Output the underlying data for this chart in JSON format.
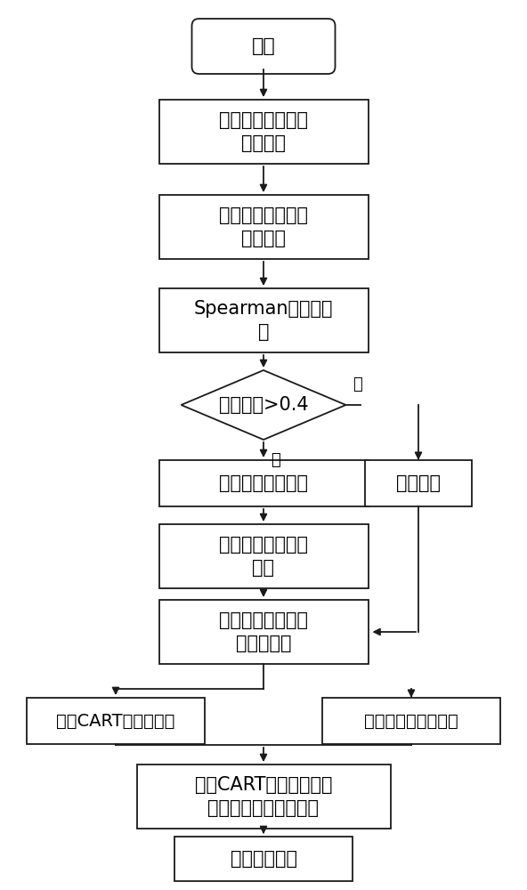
{
  "bg_color": "#ffffff",
  "nodes": {
    "start": {
      "text": "开始"
    },
    "box1": {
      "text": "构建人体面部皮肤\n指标体系"
    },
    "box2": {
      "text": "四部位层次分析法\n加权综合"
    },
    "box3": {
      "text": "Spearman秩相关分\n析"
    },
    "diamond": {
      "text": "相关系数>0.4"
    },
    "box4": {
      "text": "强相关性指标集合"
    },
    "box5": {
      "text": "主成分分析法指标\n综合"
    },
    "box6": {
      "text": "剔除冗余属性的皮\n肤指标集合"
    },
    "box_ind": {
      "text": "独立指标"
    },
    "box_cart": {
      "text": "改进CART决策树模型"
    },
    "box_fuzzy": {
      "text": "模糊朴素贝叶斯模型"
    },
    "box_comb": {
      "text": "改进CART决策树与模糊\n朴素贝叶斯模型的组合"
    },
    "box_result": {
      "text": "中医体质分类"
    }
  },
  "labels": {
    "yes": "是",
    "no": "否"
  }
}
